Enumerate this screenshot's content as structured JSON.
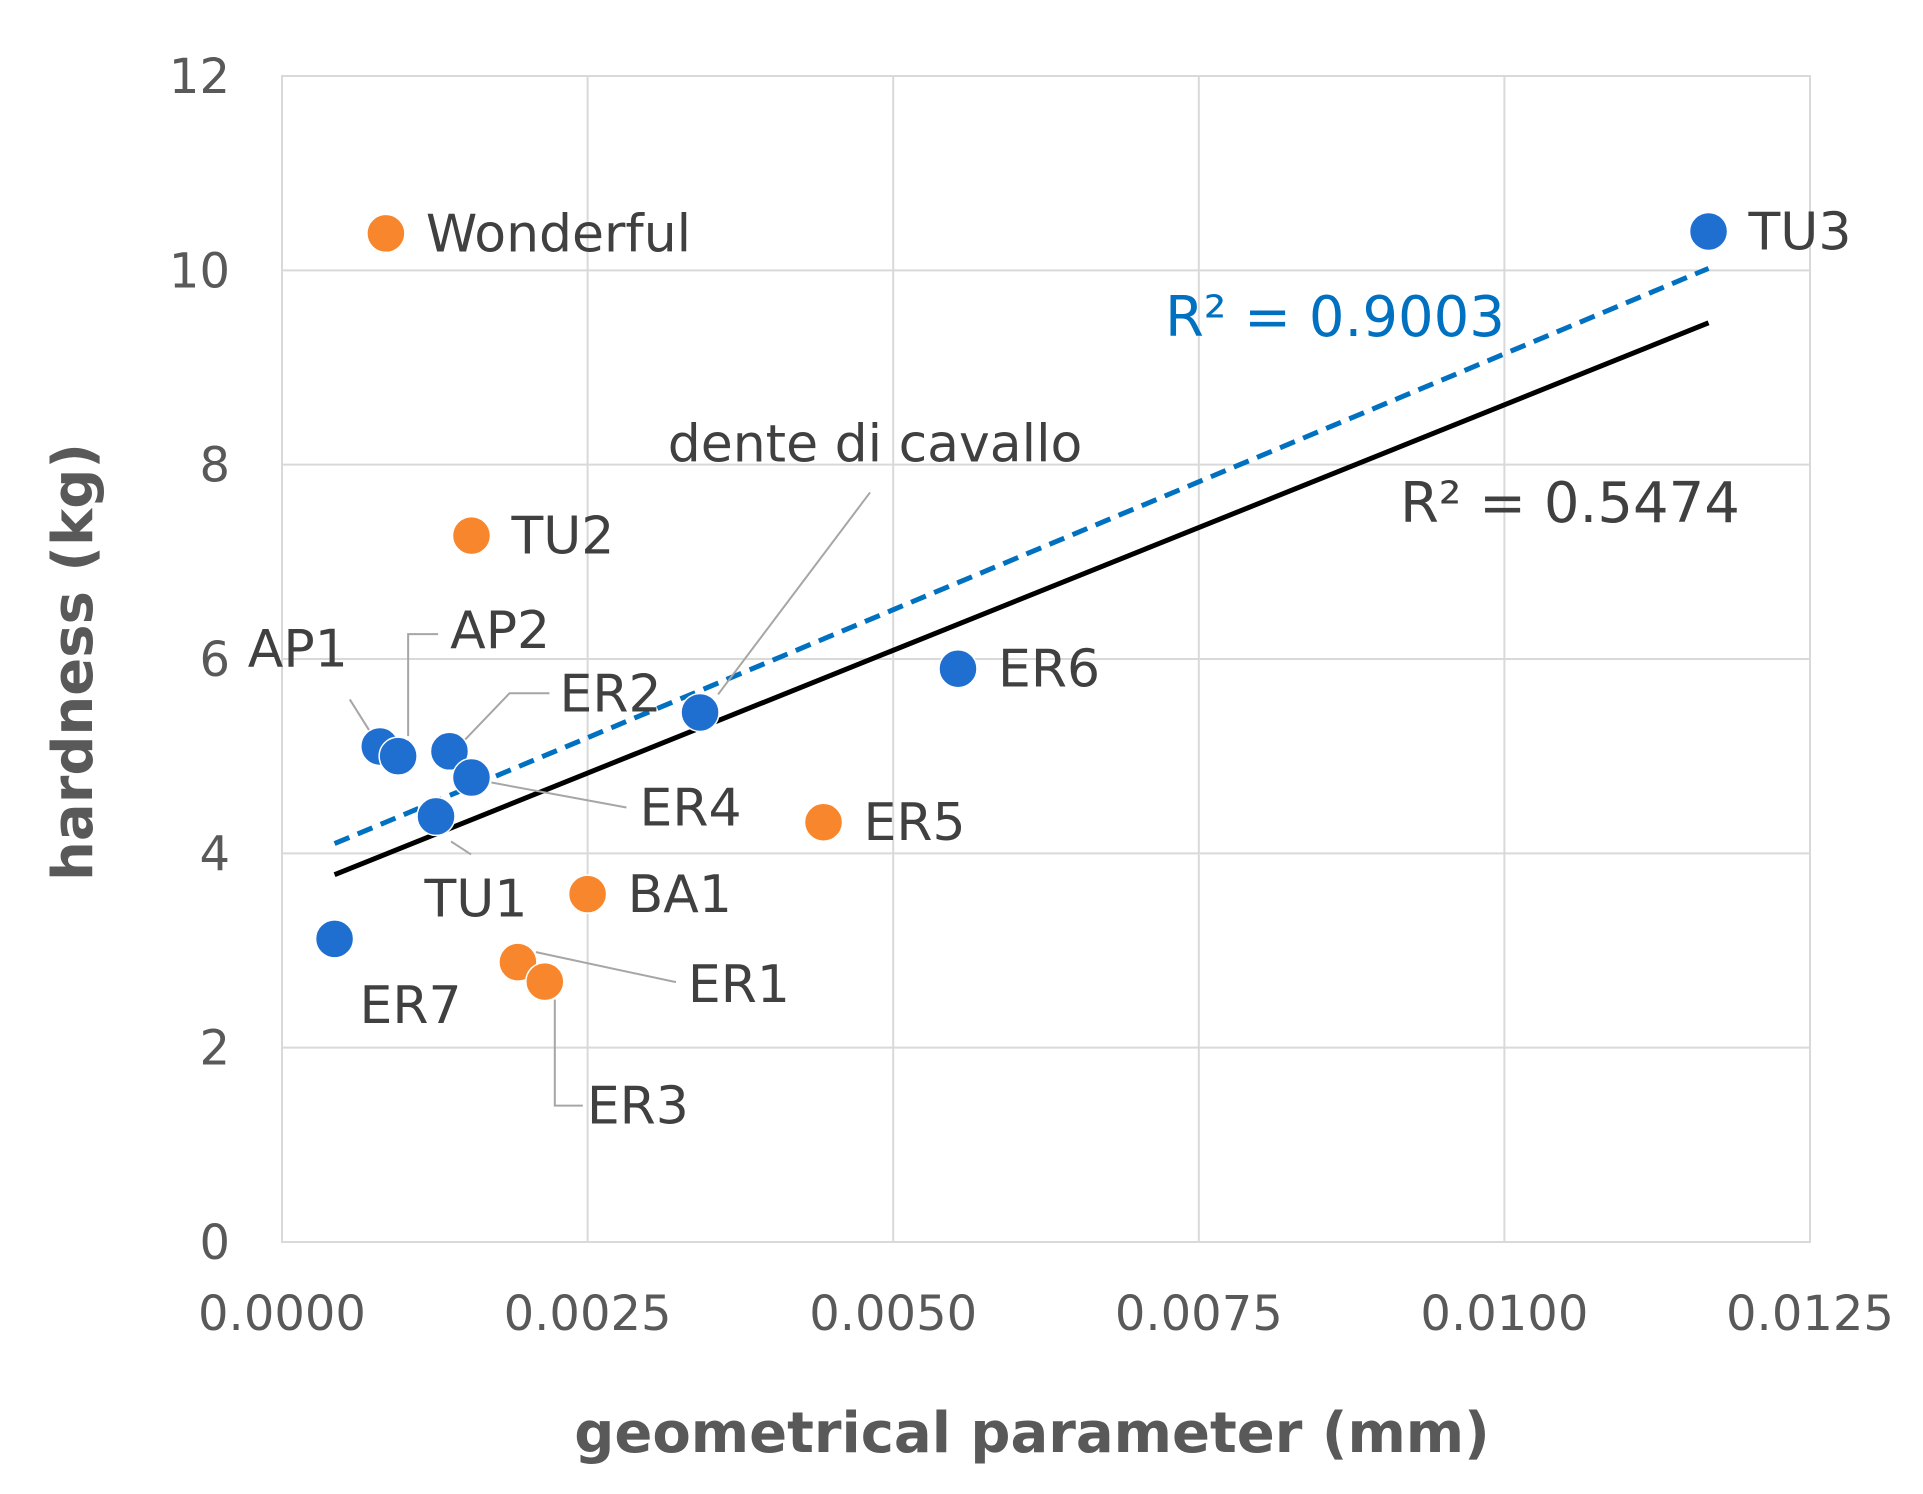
{
  "chart_data": {
    "type": "scatter",
    "title": "",
    "xlabel": "geometrical parameter (mm)",
    "ylabel": "hardness (kg)",
    "xlim": [
      0,
      0.0125
    ],
    "ylim": [
      0,
      12
    ],
    "grid": true,
    "x_ticks": [
      "0.0000",
      "0.0025",
      "0.0050",
      "0.0075",
      "0.0100",
      "0.0125"
    ],
    "y_ticks": [
      "0",
      "2",
      "4",
      "6",
      "8",
      "10",
      "12"
    ],
    "series": [
      {
        "name": "blue",
        "color": "#1F6FD0",
        "points": [
          {
            "label": "AP1",
            "x": 0.0008,
            "y": 5.1
          },
          {
            "label": "AP2",
            "x": 0.00095,
            "y": 5.0
          },
          {
            "label": "ER2",
            "x": 0.00137,
            "y": 5.05
          },
          {
            "label": "ER4",
            "x": 0.00155,
            "y": 4.78
          },
          {
            "label": "TU1",
            "x": 0.00126,
            "y": 4.38
          },
          {
            "label": "ER7",
            "x": 0.00043,
            "y": 3.12
          },
          {
            "label": "dente di cavallo",
            "x": 0.00342,
            "y": 5.45
          },
          {
            "label": "ER6",
            "x": 0.00553,
            "y": 5.9
          },
          {
            "label": "TU3",
            "x": 0.01167,
            "y": 10.4
          }
        ]
      },
      {
        "name": "orange",
        "color": "#F7862C",
        "points": [
          {
            "label": "Wonderful",
            "x": 0.00085,
            "y": 10.38
          },
          {
            "label": "TU2",
            "x": 0.00155,
            "y": 7.27
          },
          {
            "label": "ER5",
            "x": 0.00443,
            "y": 4.32
          },
          {
            "label": "BA1",
            "x": 0.0025,
            "y": 3.58
          },
          {
            "label": "ER1",
            "x": 0.00193,
            "y": 2.88
          },
          {
            "label": "ER3",
            "x": 0.00215,
            "y": 2.68
          }
        ]
      }
    ],
    "trendlines": [
      {
        "name": "blue-trend",
        "style": "dashed",
        "color": "#0070C0",
        "x": [
          0.00043,
          0.01167
        ],
        "y": [
          4.1,
          10.02
        ],
        "r2_label": "R² = 0.9003"
      },
      {
        "name": "all-trend",
        "style": "solid",
        "color": "#000000",
        "x": [
          0.00043,
          0.01167
        ],
        "y": [
          3.78,
          9.46
        ],
        "r2_label": "R² = 0.5474"
      }
    ]
  }
}
